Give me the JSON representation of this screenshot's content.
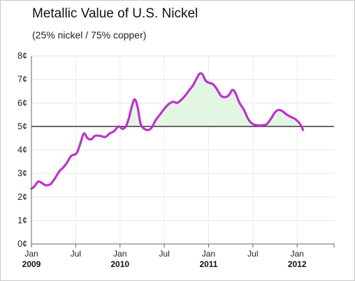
{
  "chart_data": {
    "type": "line",
    "title": "Metallic Value of U.S. Nickel",
    "subtitle": "(25% nickel / 75% copper)",
    "ylim": [
      0,
      8
    ],
    "xlim": [
      0,
      41
    ],
    "y_ticks": [
      {
        "value": 0,
        "label": "0¢"
      },
      {
        "value": 1,
        "label": "1¢"
      },
      {
        "value": 2,
        "label": "2¢"
      },
      {
        "value": 3,
        "label": "3¢"
      },
      {
        "value": 4,
        "label": "4¢"
      },
      {
        "value": 5,
        "label": "5¢"
      },
      {
        "value": 6,
        "label": "6¢"
      },
      {
        "value": 7,
        "label": "7¢"
      },
      {
        "value": 8,
        "label": "8¢"
      }
    ],
    "x_ticks": [
      {
        "value": 0,
        "label": "Jan",
        "year": "2009"
      },
      {
        "value": 6,
        "label": "Jul",
        "year": ""
      },
      {
        "value": 12,
        "label": "Jan",
        "year": "2010"
      },
      {
        "value": 18,
        "label": "Jul",
        "year": ""
      },
      {
        "value": 24,
        "label": "Jan",
        "year": "2011"
      },
      {
        "value": 30,
        "label": "Jul",
        "year": ""
      },
      {
        "value": 36,
        "label": "Jan",
        "year": "2012"
      }
    ],
    "reference_line": 5,
    "line_color": "#bb33cc",
    "fill_above_color": "#e3f6e3",
    "series": [
      {
        "points": [
          [
            0.0,
            2.35
          ],
          [
            0.4,
            2.45
          ],
          [
            0.9,
            2.65
          ],
          [
            1.4,
            2.6
          ],
          [
            1.9,
            2.5
          ],
          [
            2.6,
            2.55
          ],
          [
            3.2,
            2.8
          ],
          [
            3.8,
            3.1
          ],
          [
            4.3,
            3.25
          ],
          [
            4.8,
            3.45
          ],
          [
            5.4,
            3.75
          ],
          [
            6.1,
            3.85
          ],
          [
            6.6,
            4.25
          ],
          [
            7.1,
            4.7
          ],
          [
            7.6,
            4.5
          ],
          [
            8.1,
            4.45
          ],
          [
            8.6,
            4.6
          ],
          [
            9.3,
            4.6
          ],
          [
            10.0,
            4.55
          ],
          [
            10.6,
            4.7
          ],
          [
            11.2,
            4.8
          ],
          [
            11.8,
            5.0
          ],
          [
            12.3,
            4.9
          ],
          [
            12.8,
            5.0
          ],
          [
            13.2,
            5.35
          ],
          [
            13.6,
            5.85
          ],
          [
            14.0,
            6.15
          ],
          [
            14.4,
            5.8
          ],
          [
            14.8,
            5.1
          ],
          [
            15.3,
            4.9
          ],
          [
            15.8,
            4.85
          ],
          [
            16.3,
            4.95
          ],
          [
            16.8,
            5.25
          ],
          [
            17.4,
            5.5
          ],
          [
            18.0,
            5.75
          ],
          [
            18.6,
            5.95
          ],
          [
            19.2,
            6.05
          ],
          [
            19.7,
            6.0
          ],
          [
            20.2,
            6.1
          ],
          [
            20.8,
            6.3
          ],
          [
            21.4,
            6.55
          ],
          [
            21.9,
            6.75
          ],
          [
            22.4,
            7.05
          ],
          [
            22.8,
            7.25
          ],
          [
            23.2,
            7.2
          ],
          [
            23.6,
            6.95
          ],
          [
            24.1,
            6.85
          ],
          [
            24.6,
            6.8
          ],
          [
            25.1,
            6.6
          ],
          [
            25.7,
            6.3
          ],
          [
            26.3,
            6.25
          ],
          [
            26.8,
            6.35
          ],
          [
            27.2,
            6.55
          ],
          [
            27.6,
            6.45
          ],
          [
            28.2,
            6.0
          ],
          [
            28.8,
            5.7
          ],
          [
            29.4,
            5.3
          ],
          [
            30.0,
            5.1
          ],
          [
            30.7,
            5.05
          ],
          [
            31.3,
            5.05
          ],
          [
            31.9,
            5.1
          ],
          [
            32.5,
            5.35
          ],
          [
            33.0,
            5.6
          ],
          [
            33.5,
            5.7
          ],
          [
            34.0,
            5.65
          ],
          [
            34.6,
            5.5
          ],
          [
            35.2,
            5.4
          ],
          [
            35.8,
            5.3
          ],
          [
            36.4,
            5.1
          ],
          [
            36.8,
            4.85
          ]
        ]
      }
    ]
  }
}
